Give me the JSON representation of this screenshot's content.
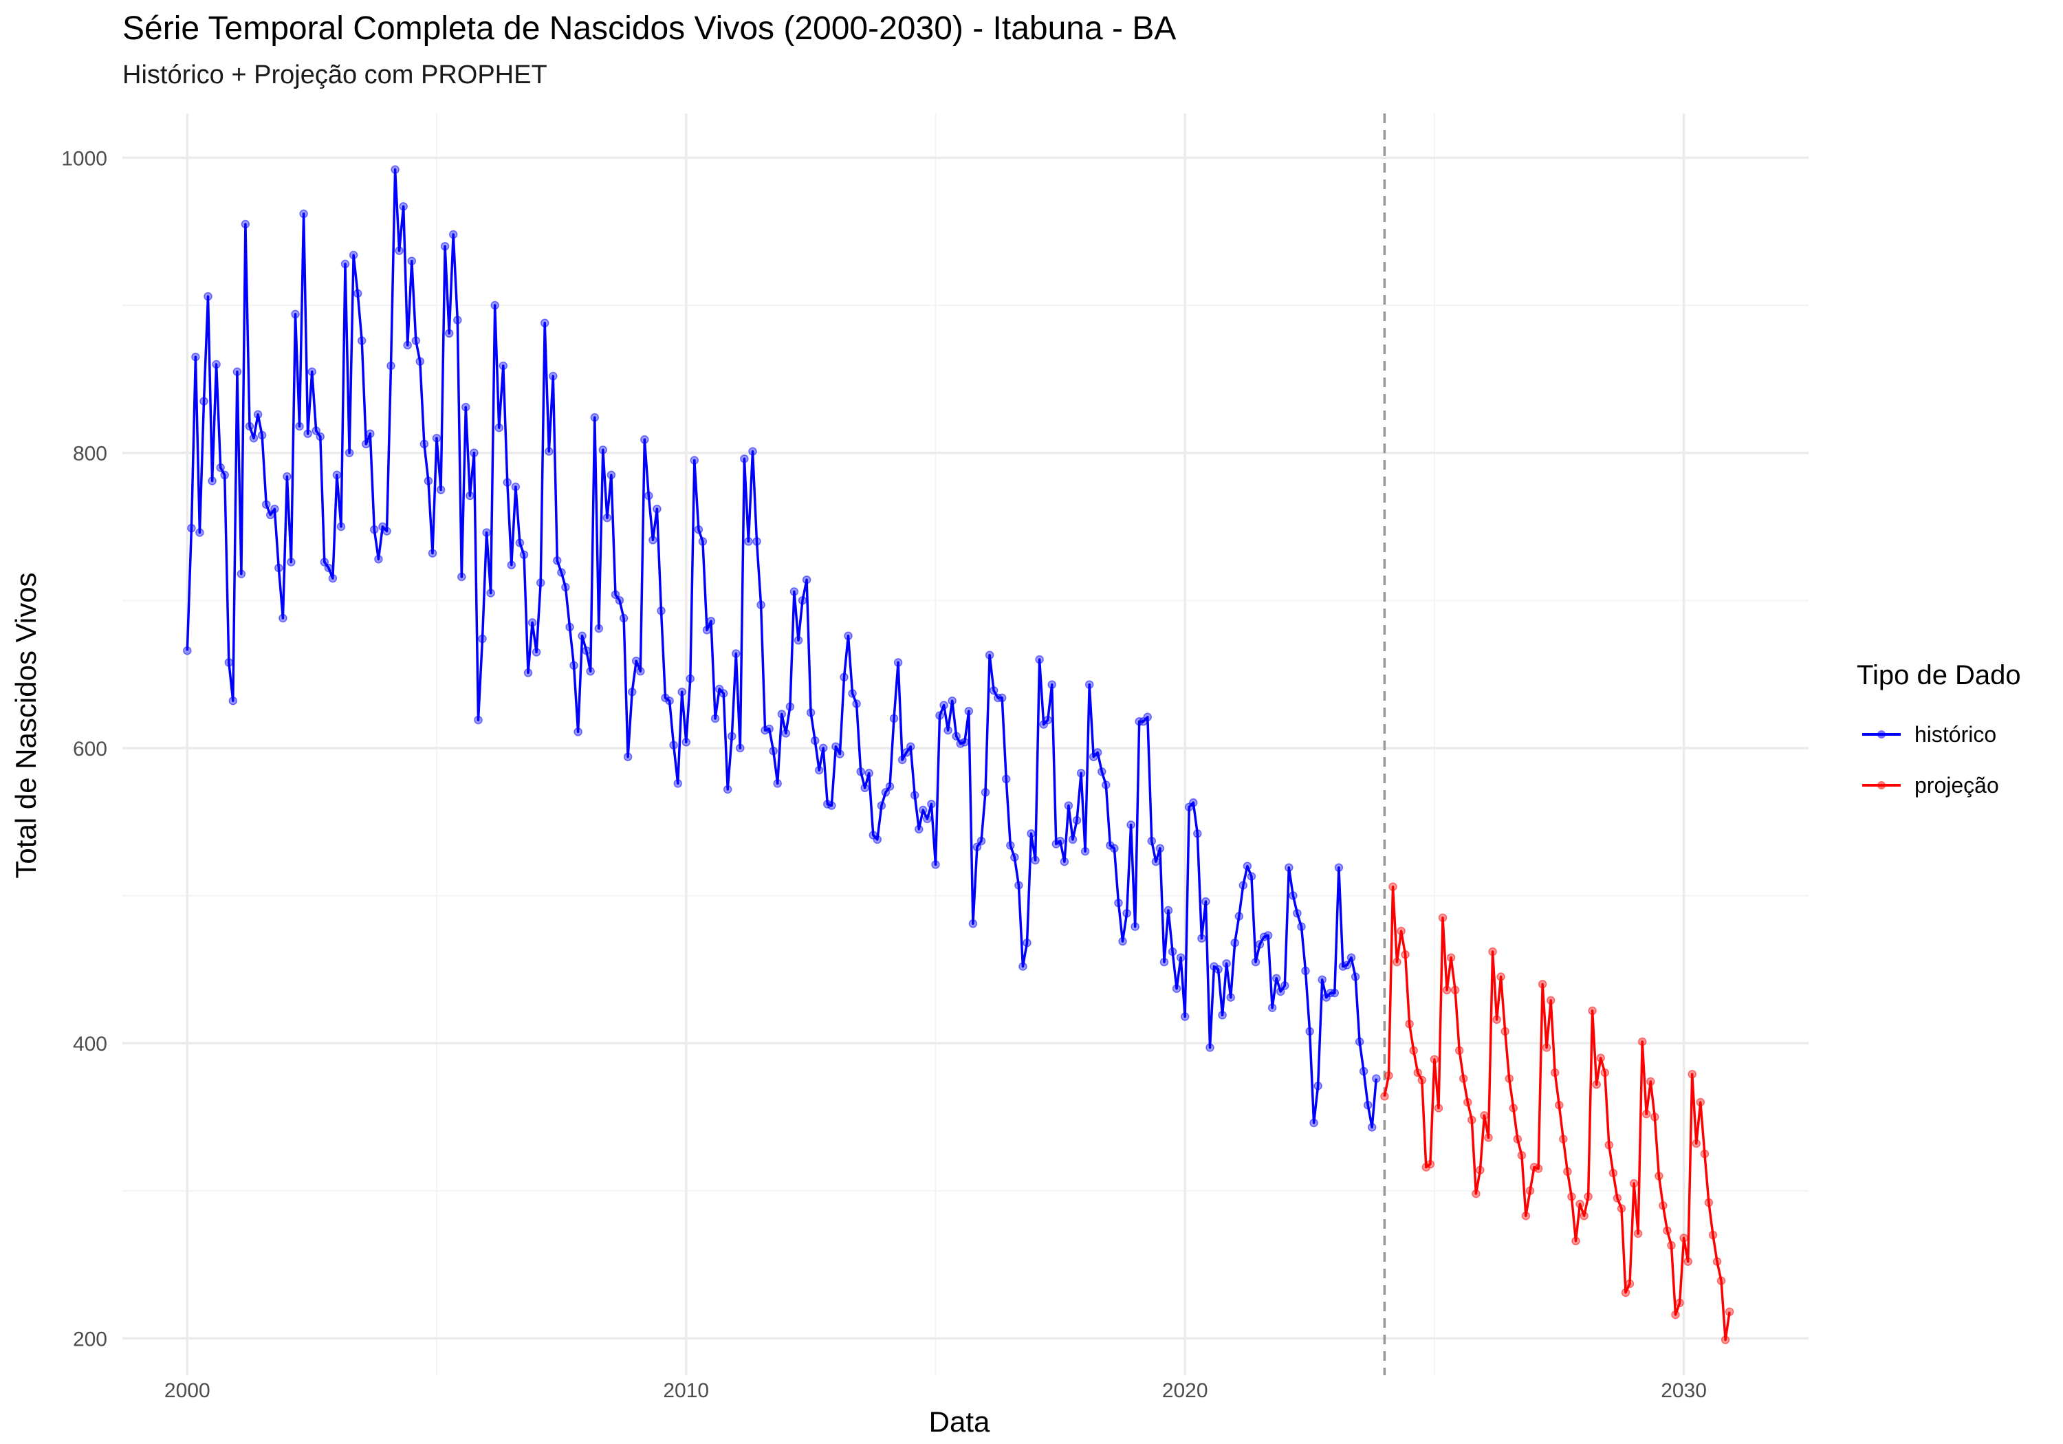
{
  "title": "Série Temporal Completa de Nascidos Vivos (2000-2030) -  Itabuna - BA",
  "subtitle": "Histórico + Projeção com PROPHET",
  "legend": {
    "title": "Tipo de Dado",
    "items": [
      {
        "label": "histórico",
        "color": "#0000ff"
      },
      {
        "label": "projeção",
        "color": "#ff0000"
      }
    ]
  },
  "chart_data": {
    "type": "line",
    "title": "Série Temporal Completa de Nascidos Vivos (2000-2030) -  Itabuna - BA",
    "subtitle": "Histórico + Projeção com PROPHET",
    "xlabel": "Data",
    "ylabel": "Total de Nascidos Vivos",
    "x_ticks": [
      2000,
      2010,
      2020,
      2030
    ],
    "y_ticks": [
      200,
      400,
      600,
      800,
      1000
    ],
    "xlim": [
      1998.7,
      2032.5
    ],
    "ylim": [
      175,
      1030
    ],
    "grid": true,
    "legend_position": "right",
    "vline": {
      "x": "2024-01",
      "style": "dashed",
      "color": "#999999"
    },
    "series": [
      {
        "name": "histórico",
        "color": "#0000ff",
        "start": "2000-01",
        "frequency": "monthly",
        "values": [
          666,
          749,
          865,
          746,
          835,
          906,
          781,
          860,
          790,
          785,
          658,
          632,
          855,
          718,
          955,
          818,
          810,
          826,
          812,
          765,
          758,
          762,
          722,
          688,
          784,
          726,
          894,
          818,
          962,
          813,
          855,
          815,
          811,
          726,
          722,
          715,
          785,
          750,
          928,
          800,
          934,
          908,
          876,
          806,
          813,
          748,
          728,
          750,
          747,
          859,
          992,
          937,
          967,
          873,
          930,
          876,
          862,
          806,
          781,
          732,
          810,
          775,
          940,
          881,
          948,
          890,
          716,
          831,
          771,
          800,
          619,
          674,
          746,
          705,
          900,
          817,
          859,
          780,
          724,
          777,
          739,
          731,
          651,
          685,
          665,
          712,
          888,
          801,
          852,
          727,
          719,
          709,
          682,
          656,
          611,
          676,
          666,
          652,
          824,
          681,
          802,
          756,
          785,
          704,
          700,
          688,
          594,
          638,
          659,
          652,
          809,
          771,
          741,
          762,
          693,
          634,
          632,
          602,
          576,
          638,
          604,
          647,
          795,
          748,
          740,
          680,
          686,
          620,
          640,
          637,
          572,
          608,
          664,
          600,
          796,
          740,
          801,
          740,
          697,
          612,
          613,
          598,
          576,
          623,
          610,
          628,
          706,
          673,
          700,
          714,
          624,
          605,
          585,
          600,
          562,
          561,
          601,
          596,
          648,
          676,
          637,
          630,
          584,
          573,
          583,
          541,
          538,
          561,
          570,
          574,
          620,
          658,
          592,
          597,
          601,
          568,
          545,
          558,
          552,
          562,
          521,
          622,
          629,
          612,
          632,
          608,
          603,
          604,
          625,
          481,
          533,
          537,
          570,
          663,
          639,
          634,
          634,
          579,
          534,
          526,
          507,
          452,
          468,
          542,
          524,
          660,
          616,
          619,
          643,
          535,
          537,
          523,
          561,
          538,
          551,
          583,
          530,
          643,
          594,
          597,
          584,
          575,
          534,
          532,
          495,
          469,
          488,
          548,
          479,
          618,
          618,
          621,
          537,
          523,
          532,
          455,
          490,
          462,
          437,
          458,
          418,
          560,
          563,
          542,
          471,
          496,
          397,
          452,
          450,
          419,
          454,
          431,
          468,
          486,
          507,
          520,
          513,
          455,
          467,
          472,
          473,
          424,
          444,
          435,
          439,
          519,
          500,
          488,
          479,
          449,
          408,
          346,
          371,
          443,
          431,
          434,
          434,
          519,
          452,
          453,
          458,
          445,
          401,
          381,
          358,
          343,
          376
        ]
      },
      {
        "name": "projeção",
        "color": "#ff0000",
        "start": "2024-01",
        "frequency": "monthly",
        "values": [
          364,
          378,
          506,
          455,
          476,
          460,
          413,
          395,
          380,
          375,
          316,
          318,
          389,
          356,
          485,
          436,
          458,
          436,
          395,
          376,
          360,
          348,
          298,
          314,
          351,
          336,
          462,
          416,
          445,
          408,
          376,
          356,
          335,
          324,
          283,
          300,
          316,
          315,
          440,
          397,
          429,
          380,
          358,
          335,
          313,
          296,
          266,
          291,
          283,
          296,
          422,
          372,
          390,
          380,
          331,
          312,
          295,
          288,
          231,
          237,
          305,
          271,
          401,
          352,
          374,
          350,
          310,
          290,
          273,
          263,
          216,
          224,
          268,
          252,
          379,
          332,
          360,
          325,
          292,
          270,
          252,
          239,
          199,
          218
        ]
      }
    ]
  }
}
